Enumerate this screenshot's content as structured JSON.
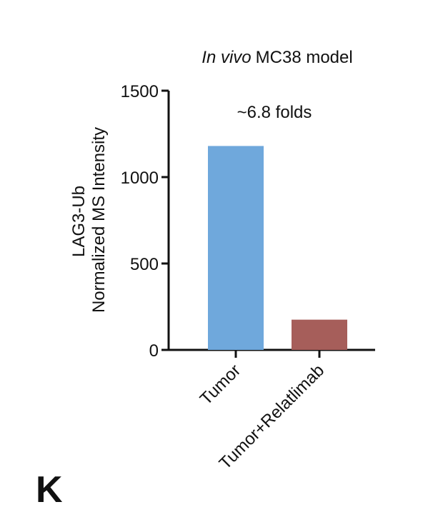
{
  "panel_label": "K",
  "chart_data": {
    "type": "bar",
    "title_italic": "In vivo",
    "title_rest": "MC38 model",
    "ylabel_line1": "LAG3-Ub",
    "ylabel_line2": "Normalized MS Intensity",
    "xlabel": "",
    "categories": [
      "Tumor",
      "Tumor+Relatlimab"
    ],
    "values": [
      1180,
      175
    ],
    "colors": [
      "#6fa8dc",
      "#a65e5a"
    ],
    "ylim": [
      0,
      1500
    ],
    "yticks": [
      0,
      500,
      1000,
      1500
    ],
    "ytick_labels": [
      "0",
      "500",
      "1000",
      "1500"
    ],
    "annotation": "~6.8 folds",
    "grid": false,
    "legend": "none"
  }
}
